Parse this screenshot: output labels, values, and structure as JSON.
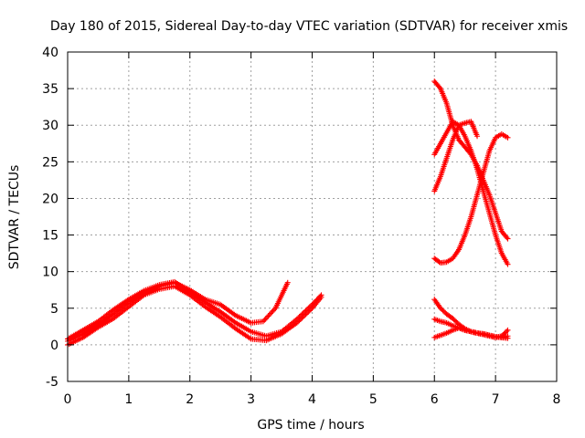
{
  "chart_data": {
    "type": "scatter",
    "title": "Day 180 of 2015, Sidereal Day-to-day VTEC variation (SDTVAR) for receiver xmis",
    "xlabel": "GPS time / hours",
    "ylabel": "SDTVAR / TECUs",
    "xlim": [
      0,
      8
    ],
    "ylim": [
      -5,
      40
    ],
    "xticks": [
      0,
      1,
      2,
      3,
      4,
      5,
      6,
      7,
      8
    ],
    "yticks": [
      -5,
      0,
      5,
      10,
      15,
      20,
      25,
      30,
      35,
      40
    ],
    "grid": true,
    "marker": "+",
    "color": "#ff0000",
    "series": [
      {
        "name": "trace-1",
        "x": [
          0.0,
          0.25,
          0.5,
          0.75,
          1.0,
          1.25,
          1.5,
          1.75,
          2.0,
          2.25,
          2.5,
          2.75,
          3.0,
          3.2,
          3.4,
          3.6
        ],
        "y": [
          0.5,
          1.5,
          2.8,
          4.2,
          5.8,
          7.0,
          8.0,
          8.5,
          7.5,
          6.2,
          5.5,
          4.0,
          3.0,
          3.2,
          5.0,
          8.5
        ]
      },
      {
        "name": "trace-2",
        "x": [
          0.0,
          0.25,
          0.5,
          0.75,
          1.0,
          1.25,
          1.5,
          1.75,
          2.0,
          2.25,
          2.5,
          2.75,
          3.0,
          3.25,
          3.5,
          3.75,
          4.0,
          4.15
        ],
        "y": [
          0.0,
          1.0,
          2.4,
          3.6,
          5.2,
          6.8,
          7.6,
          8.0,
          6.8,
          5.2,
          3.8,
          2.2,
          0.8,
          0.6,
          1.5,
          3.0,
          5.0,
          6.5
        ]
      },
      {
        "name": "trace-3",
        "x": [
          0.0,
          0.25,
          0.5,
          0.75,
          1.0,
          1.25,
          1.5,
          1.75,
          2.0,
          2.25,
          2.5,
          2.75,
          3.0,
          3.25,
          3.5,
          3.75,
          4.0,
          4.15
        ],
        "y": [
          0.8,
          2.0,
          3.2,
          4.8,
          6.2,
          7.4,
          8.2,
          8.6,
          7.2,
          5.8,
          4.5,
          3.0,
          1.8,
          1.2,
          1.8,
          3.5,
          5.5,
          6.8
        ]
      },
      {
        "name": "trace-4",
        "x": [
          6.0,
          6.1,
          6.2,
          6.3,
          6.4,
          6.5,
          6.6,
          6.7,
          6.8,
          6.9,
          7.0,
          7.1,
          7.2
        ],
        "y": [
          36.0,
          35.0,
          33.0,
          30.0,
          28.0,
          27.0,
          26.0,
          24.5,
          22.5,
          20.5,
          18.0,
          15.5,
          14.5
        ]
      },
      {
        "name": "trace-5",
        "x": [
          6.0,
          6.1,
          6.2,
          6.3,
          6.4,
          6.5,
          6.6,
          6.7
        ],
        "y": [
          26.0,
          27.5,
          29.0,
          30.5,
          30.0,
          30.3,
          30.5,
          28.5
        ]
      },
      {
        "name": "trace-6",
        "x": [
          6.0,
          6.1,
          6.2,
          6.3,
          6.4,
          6.5,
          6.6,
          6.7,
          6.8,
          6.9,
          7.0,
          7.1,
          7.2
        ],
        "y": [
          21.0,
          23.0,
          25.5,
          28.0,
          30.0,
          28.5,
          26.5,
          24.0,
          21.0,
          18.0,
          15.0,
          12.5,
          11.0
        ]
      },
      {
        "name": "trace-7",
        "x": [
          6.0,
          6.1,
          6.2,
          6.3,
          6.4,
          6.5,
          6.6,
          6.7,
          6.8,
          6.9,
          7.0,
          7.1,
          7.2
        ],
        "y": [
          11.8,
          11.2,
          11.3,
          11.8,
          13.0,
          15.0,
          17.5,
          20.5,
          23.5,
          26.5,
          28.3,
          28.8,
          28.3
        ]
      },
      {
        "name": "trace-8",
        "x": [
          6.0,
          6.1,
          6.2,
          6.3,
          6.4,
          6.5,
          6.6,
          6.7,
          6.8,
          6.9,
          7.0,
          7.1,
          7.2
        ],
        "y": [
          6.2,
          5.0,
          4.2,
          3.6,
          2.8,
          2.2,
          1.8,
          1.6,
          1.5,
          1.3,
          1.1,
          1.0,
          1.2
        ]
      },
      {
        "name": "trace-9",
        "x": [
          6.0,
          6.1,
          6.2,
          6.3,
          6.4,
          6.5,
          6.6,
          6.7,
          6.8,
          6.9,
          7.0,
          7.1,
          7.2
        ],
        "y": [
          3.5,
          3.2,
          3.0,
          2.6,
          2.3,
          2.0,
          1.8,
          1.6,
          1.4,
          1.2,
          1.0,
          1.2,
          2.0
        ]
      },
      {
        "name": "trace-10",
        "x": [
          6.0,
          6.1,
          6.2,
          6.3,
          6.4,
          6.5,
          6.6,
          6.7,
          6.8,
          6.9,
          7.0,
          7.1,
          7.2
        ],
        "y": [
          1.0,
          1.3,
          1.6,
          2.0,
          2.3,
          2.0,
          1.8,
          1.6,
          1.5,
          1.3,
          1.1,
          1.0,
          0.9
        ]
      }
    ]
  }
}
